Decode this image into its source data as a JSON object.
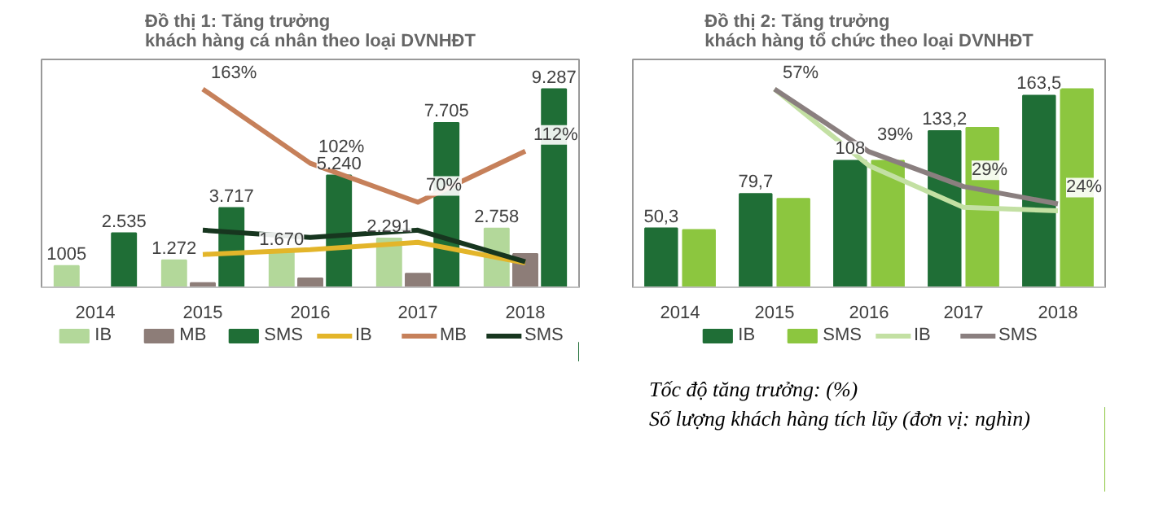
{
  "chart_data": [
    {
      "type": "bar",
      "title": "Đồ thị 1: Tăng trưởng\nkhách hàng cá nhân theo loại DVNHĐT",
      "categories": [
        "2014",
        "2015",
        "2016",
        "2017",
        "2018"
      ],
      "tick_labels": "x",
      "legend": "bottom",
      "series": [
        {
          "name": "IB",
          "color": "#b3d89a",
          "values": [
            1005,
            1272,
            1670,
            2291,
            2758
          ],
          "value_labels": [
            "1005",
            "1.272",
            "1.670",
            "2.291",
            "2.758"
          ]
        },
        {
          "name": "MB",
          "color": "#8d7d78",
          "values": [
            0,
            200,
            420,
            640,
            1560
          ]
        },
        {
          "name": "SMS",
          "color": "#1f6e36",
          "values": [
            2535,
            3717,
            5240,
            7705,
            9287
          ],
          "value_labels": [
            "2.535",
            "3.717",
            "5.240",
            "7.705",
            "9.287"
          ]
        },
        {
          "name": "IB",
          "type": "line",
          "axis": "y2",
          "color": "#e3b52a",
          "values": [
            null,
            27,
            31,
            37,
            20
          ]
        },
        {
          "name": "MB",
          "type": "line",
          "axis": "y2",
          "color": "#c6805a",
          "values": [
            null,
            163,
            102,
            70,
            112
          ],
          "value_labels": [
            null,
            "163%",
            "102%",
            "70%",
            "112%"
          ]
        },
        {
          "name": "SMS",
          "type": "line",
          "axis": "y2",
          "color": "#17361f",
          "values": [
            null,
            47,
            41,
            47,
            21
          ]
        }
      ]
    },
    {
      "type": "bar",
      "title": "Đồ thị 2: Tăng trưởng\nkhách hàng tổ chức theo loại DVNHĐT",
      "categories": [
        "2014",
        "2015",
        "2016",
        "2017",
        "2018"
      ],
      "tick_labels": "x",
      "legend": "bottom",
      "annotations": [
        "Tốc độ tăng trưởng: (%)",
        "Số lượng khách hàng tích lũy (đơn vị: nghìn)"
      ],
      "series": [
        {
          "name": "IB",
          "color": "#1f6e36",
          "values": [
            50.3,
            79.7,
            108,
            133.2,
            163.5
          ],
          "value_labels": [
            "50,3",
            "79,7",
            "108",
            "133,2",
            "163,5"
          ]
        },
        {
          "name": "SMS",
          "color": "#8cc63f",
          "values": [
            49,
            75.5,
            108,
            136,
            169
          ]
        },
        {
          "name": "IB",
          "type": "line",
          "axis": "y2",
          "color": "#c3e0a3",
          "values": [
            null,
            57,
            35,
            23,
            22
          ]
        },
        {
          "name": "SMS",
          "type": "line",
          "axis": "y2",
          "color": "#8a7f7f",
          "values": [
            null,
            57,
            39,
            29,
            24
          ],
          "value_labels": [
            null,
            "57%",
            "39%",
            "29%",
            "24%"
          ]
        }
      ]
    }
  ]
}
